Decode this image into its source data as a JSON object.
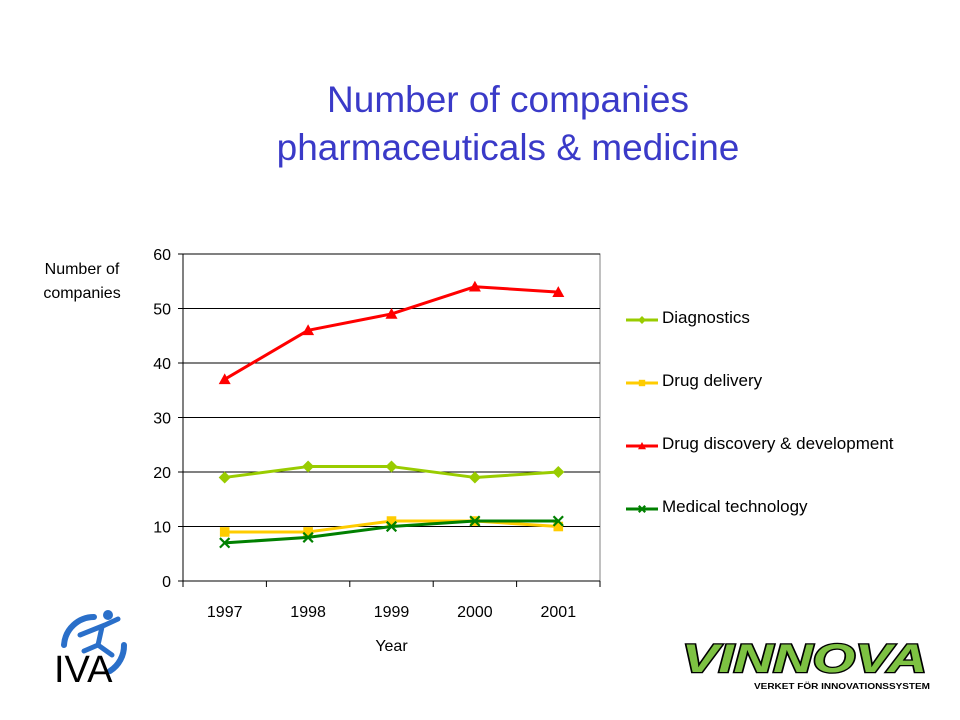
{
  "title_line1": "Number of companies",
  "title_line2": "pharmaceuticals & medicine",
  "logos": {
    "iva_text": "IVA",
    "vinnova_text": "VINNOVA",
    "vinnova_tagline": "VERKET FÖR INNOVATIONSSYSTEM"
  },
  "chart_data": {
    "type": "line",
    "title": "Number of companies pharmaceuticals & medicine",
    "xlabel": "Year",
    "ylabel": "Number of companies",
    "x": [
      "1997",
      "1998",
      "1999",
      "2000",
      "2001"
    ],
    "ylim": [
      0,
      60
    ],
    "yticks": [
      "0",
      "10",
      "20",
      "30",
      "40",
      "50",
      "60"
    ],
    "grid": true,
    "legend_position": "right",
    "series": [
      {
        "name": "Diagnostics",
        "values": [
          19,
          21,
          21,
          19,
          20
        ],
        "color": "#99cc00",
        "marker": "diamond"
      },
      {
        "name": "Drug delivery",
        "values": [
          9,
          9,
          11,
          11,
          10
        ],
        "color": "#ffcc00",
        "marker": "square"
      },
      {
        "name": "Drug discovery & development",
        "values": [
          37,
          46,
          49,
          54,
          53
        ],
        "color": "#ff0000",
        "marker": "triangle"
      },
      {
        "name": "Medical technology",
        "values": [
          7,
          8,
          10,
          11,
          11
        ],
        "color": "#008000",
        "marker": "x"
      }
    ]
  }
}
